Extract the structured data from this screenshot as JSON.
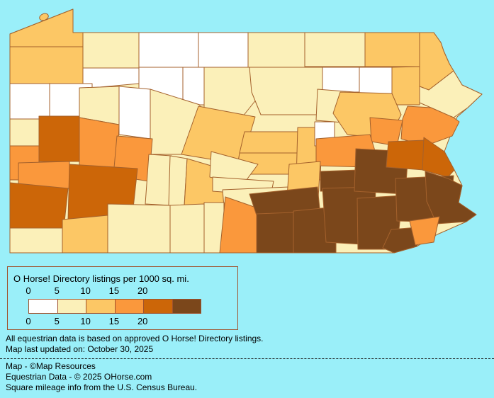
{
  "colors": {
    "background": "#9AEFF9",
    "county_border": "#A4612C",
    "legend_border": "#A0522D",
    "text": "#000000"
  },
  "legend": {
    "title": "O Horse! Directory listings per 1000 sq. mi.",
    "ticks": [
      "0",
      "5",
      "10",
      "15",
      "20"
    ],
    "bucket_colors": [
      "#FFFFFF",
      "#FBF0B9",
      "#FCC765",
      "#FA983C",
      "#CC6608",
      "#7B471B"
    ]
  },
  "footnotes": {
    "lines": [
      "All equestrian data is based on approved O Horse! Directory listings.",
      "Map last updated on: October 30, 2025"
    ]
  },
  "credits": {
    "lines": [
      "Map - ©Map Resources",
      "Equestrian Data - © 2025 OHorse.com",
      "Square mileage info from the U.S. Census Bureau."
    ]
  }
}
